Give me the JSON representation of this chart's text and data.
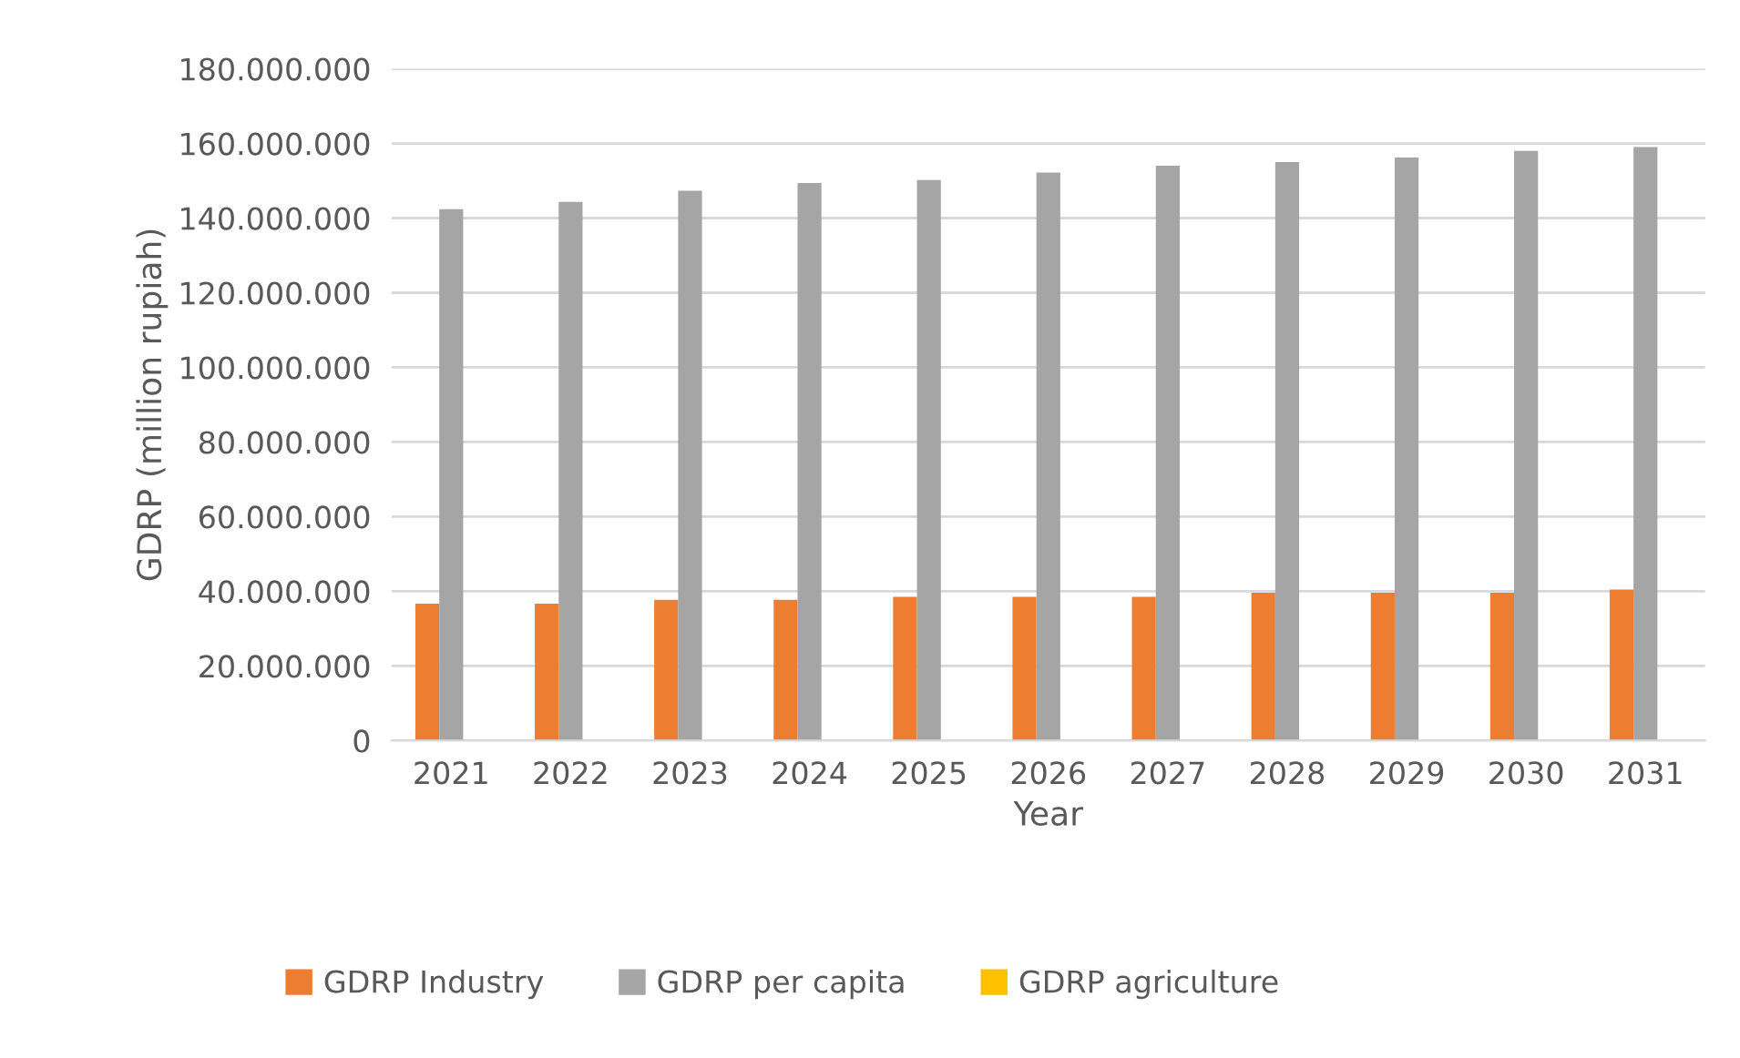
{
  "chart_data": {
    "type": "bar",
    "xlabel": "Year",
    "ylabel": "GDRP (million rupiah)",
    "categories": [
      "2021",
      "2022",
      "2023",
      "2024",
      "2025",
      "2026",
      "2027",
      "2028",
      "2029",
      "2030",
      "2031"
    ],
    "series": [
      {
        "name": "GDRP Industry",
        "color": "#ed7d31",
        "values": [
          36700000,
          36700000,
          37700000,
          37700000,
          38500000,
          38500000,
          38500000,
          39600000,
          39600000,
          39600000,
          40500000
        ]
      },
      {
        "name": "GDRP per capita",
        "color": "#a5a5a5",
        "values": [
          142400000,
          144300000,
          147300000,
          149400000,
          150200000,
          152200000,
          154000000,
          155000000,
          156200000,
          158000000,
          159000000
        ]
      },
      {
        "name": "GDRP agriculture",
        "color": "#ffc000",
        "values": [
          null,
          null,
          null,
          null,
          null,
          null,
          null,
          null,
          null,
          null,
          null
        ]
      }
    ],
    "ylim": [
      0,
      180000000
    ],
    "yticks": [
      {
        "value": 0,
        "label": "0"
      },
      {
        "value": 20000000,
        "label": "20.000.000"
      },
      {
        "value": 40000000,
        "label": "40.000.000"
      },
      {
        "value": 60000000,
        "label": "60.000.000"
      },
      {
        "value": 80000000,
        "label": "80.000.000"
      },
      {
        "value": 100000000,
        "label": "100.000.000"
      },
      {
        "value": 120000000,
        "label": "120.000.000"
      },
      {
        "value": 140000000,
        "label": "140.000.000"
      },
      {
        "value": 160000000,
        "label": "160.000.000"
      },
      {
        "value": 180000000,
        "label": "180.000.000"
      }
    ],
    "grid": "y",
    "legend": "bottom"
  }
}
